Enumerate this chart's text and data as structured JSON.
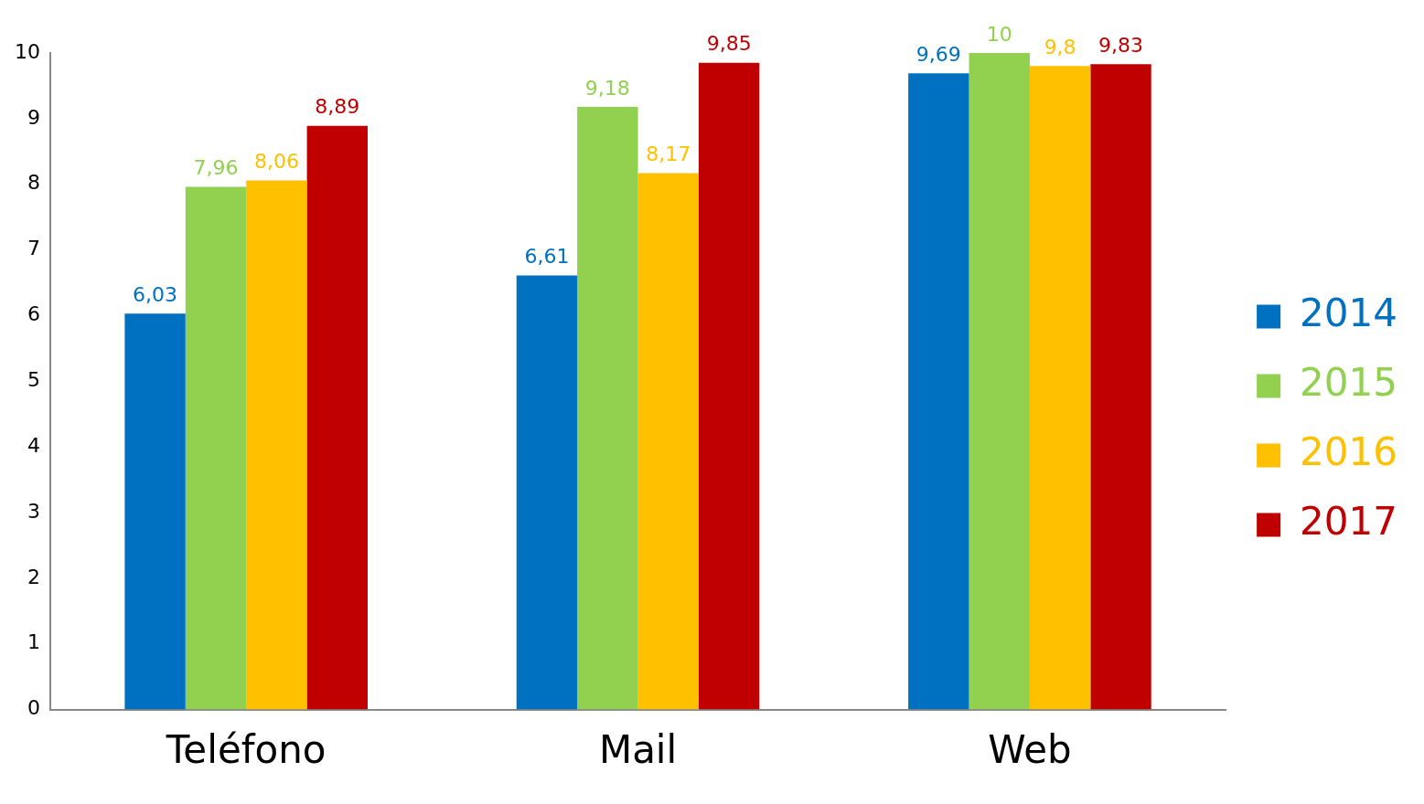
{
  "chart_data": {
    "type": "bar",
    "categories": [
      "Teléfono",
      "Mail",
      "Web"
    ],
    "series": [
      {
        "name": "2014",
        "color": "#0070c0",
        "values": [
          6.03,
          6.61,
          9.69
        ],
        "value_labels": [
          "6,03",
          "6,61",
          "9,69"
        ]
      },
      {
        "name": "2015",
        "color": "#92d050",
        "values": [
          7.96,
          9.18,
          10
        ],
        "value_labels": [
          "7,96",
          "9,18",
          "10"
        ]
      },
      {
        "name": "2016",
        "color": "#ffc000",
        "values": [
          8.06,
          8.17,
          9.8
        ],
        "value_labels": [
          "8,06",
          "8,17",
          "9,8"
        ]
      },
      {
        "name": "2017",
        "color": "#c00000",
        "values": [
          8.89,
          9.85,
          9.83
        ],
        "value_labels": [
          "8,89",
          "9,85",
          "9,83"
        ]
      }
    ],
    "ylim": [
      0,
      10
    ],
    "yticks": [
      0,
      1,
      2,
      3,
      4,
      5,
      6,
      7,
      8,
      9,
      10
    ],
    "grid": false,
    "legend": "right"
  }
}
